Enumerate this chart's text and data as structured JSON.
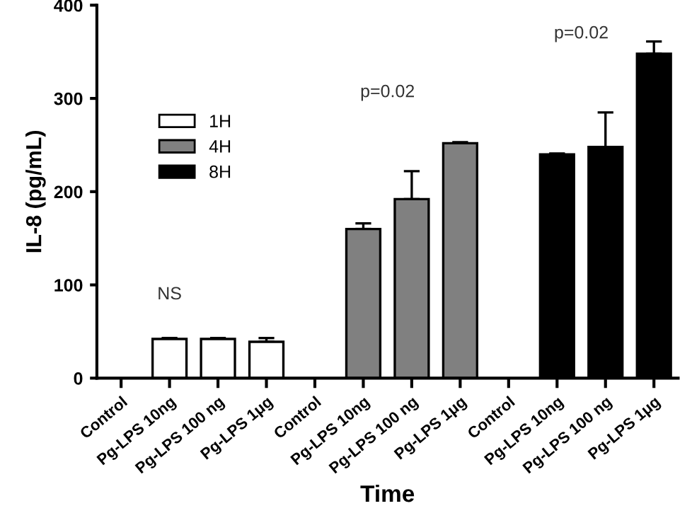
{
  "chart_data": {
    "type": "bar",
    "xlabel": "Time",
    "ylabel": "IL-8 (pg/mL)",
    "categories": [
      "Control",
      "Pg-LPS 10ng",
      "Pg-LPS 100 ng",
      "Pg-LPS 1μg",
      "Control",
      "Pg-LPS 10ng",
      "Pg-LPS 100 ng",
      "Pg-LPS 1μg",
      "Control",
      "Pg-LPS 10ng",
      "Pg-LPS 100 ng",
      "Pg-LPS 1μg"
    ],
    "series": [
      {
        "name": "1H",
        "color": "#ffffff",
        "values": [
          null,
          42,
          42,
          39,
          null,
          null,
          null,
          null,
          null,
          null,
          null,
          null
        ],
        "errors": [
          null,
          1,
          1,
          4,
          null,
          null,
          null,
          null,
          null,
          null,
          null,
          null
        ]
      },
      {
        "name": "4H",
        "color": "#808080",
        "values": [
          null,
          null,
          null,
          null,
          null,
          160,
          192,
          252,
          null,
          null,
          null,
          null
        ],
        "errors": [
          null,
          null,
          null,
          null,
          null,
          6,
          30,
          1,
          null,
          null,
          null,
          null
        ]
      },
      {
        "name": "8H",
        "color": "#000000",
        "values": [
          null,
          null,
          null,
          null,
          null,
          null,
          null,
          null,
          null,
          240,
          248,
          348
        ],
        "errors": [
          null,
          null,
          null,
          null,
          null,
          null,
          null,
          null,
          null,
          1,
          37,
          13
        ]
      }
    ],
    "ylim": [
      0,
      400
    ],
    "yticks": [
      0,
      100,
      200,
      300,
      400
    ],
    "grid": false,
    "legend": "top left",
    "annotations": [
      "NS",
      "p=0.02",
      "p=0.02"
    ]
  }
}
